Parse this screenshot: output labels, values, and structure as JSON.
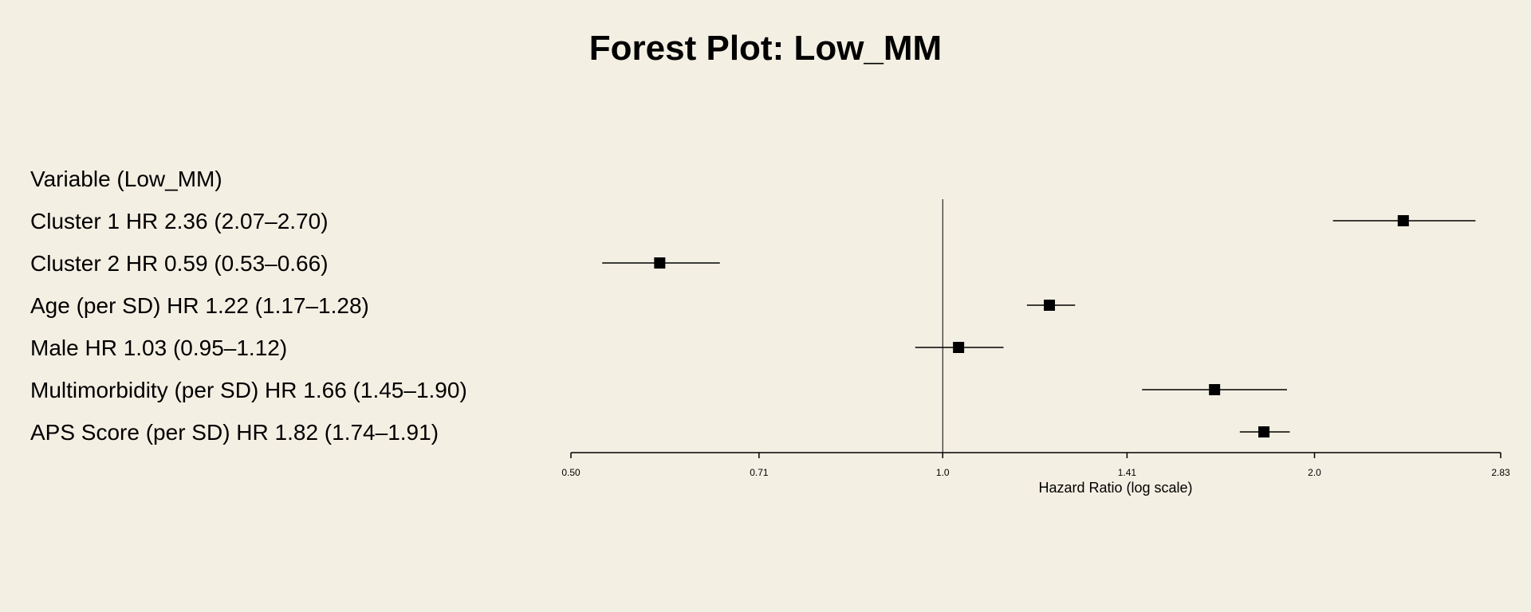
{
  "chart_data": {
    "type": "forest",
    "title": "Forest Plot: Low_MM",
    "header_label": "Variable (Low_MM)",
    "xlabel": "Hazard Ratio (log scale)",
    "x_scale": "log",
    "xlim": [
      0.5,
      2.83
    ],
    "xticks": [
      {
        "value": 0.5,
        "label": "0.50"
      },
      {
        "value": 0.71,
        "label": "0.71"
      },
      {
        "value": 1.0,
        "label": "1.0"
      },
      {
        "value": 1.41,
        "label": "1.41"
      },
      {
        "value": 2.0,
        "label": "2.0"
      },
      {
        "value": 2.83,
        "label": "2.83"
      }
    ],
    "reference_line": 1.0,
    "rows": [
      {
        "label": "Cluster 1  HR 2.36 (2.07–2.70)",
        "hr": 2.36,
        "lower": 2.07,
        "upper": 2.7
      },
      {
        "label": "Cluster 2  HR 0.59 (0.53–0.66)",
        "hr": 0.59,
        "lower": 0.53,
        "upper": 0.66
      },
      {
        "label": "Age (per SD)  HR 1.22 (1.17–1.28)",
        "hr": 1.22,
        "lower": 1.17,
        "upper": 1.28
      },
      {
        "label": "Male  HR 1.03 (0.95–1.12)",
        "hr": 1.03,
        "lower": 0.95,
        "upper": 1.12
      },
      {
        "label": "Multimorbidity (per SD)  HR 1.66 (1.45–1.90)",
        "hr": 1.66,
        "lower": 1.45,
        "upper": 1.9
      },
      {
        "label": "APS Score (per SD)  HR 1.82 (1.74–1.91)",
        "hr": 1.82,
        "lower": 1.74,
        "upper": 1.91
      }
    ],
    "colors": {
      "background": "#f4efe3",
      "marker": "#000000",
      "line": "#000000"
    }
  }
}
